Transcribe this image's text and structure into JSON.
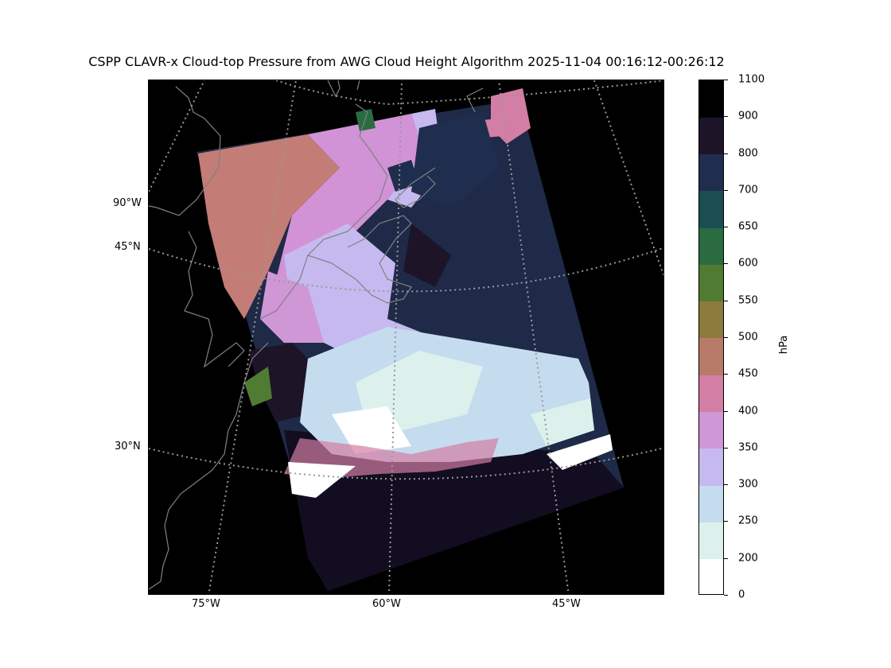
{
  "title": "CSPP CLAVR-x Cloud-top Pressure from AWG Cloud Height Algorithm 2025-11-04 00:16:12-00:26:12",
  "map": {
    "lon_labels": [
      "75°W",
      "60°W",
      "45°W"
    ],
    "lat_labels": [
      "45°N",
      "30°N"
    ],
    "meridian_label_left": "90°W",
    "gridline_style": "dotted grey",
    "coastline_color": "#808080"
  },
  "colorbar": {
    "unit": "hPa",
    "ticks": [
      "0",
      "200",
      "250",
      "300",
      "350",
      "400",
      "450",
      "500",
      "550",
      "600",
      "650",
      "700",
      "800",
      "900",
      "1100"
    ],
    "colors": [
      "#ffffff",
      "#dcf1ec",
      "#c5dcef",
      "#c6b9ef",
      "#d097d7",
      "#d37ea4",
      "#b97b69",
      "#8b7b3c",
      "#507b33",
      "#2a6c40",
      "#1b4e52",
      "#1f2e4e",
      "#1d1428",
      "#000000"
    ]
  }
}
